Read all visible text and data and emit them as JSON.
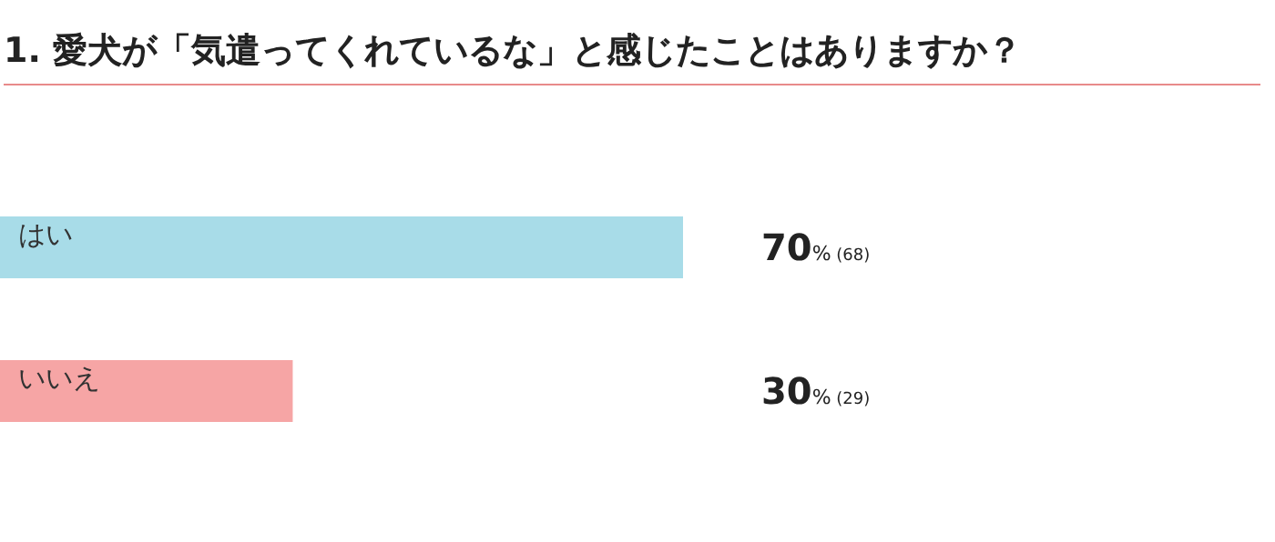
{
  "chart_data": {
    "type": "bar",
    "orientation": "horizontal",
    "title": "1. 愛犬が「気遣ってくれているな」と感じたことはありますか？",
    "categories": [
      "はい",
      "いいえ"
    ],
    "values": [
      70,
      30
    ],
    "colors": [
      "#a8dce8",
      "#f6a5a5"
    ],
    "value_labels": [
      "70% (68)",
      "30% (29)"
    ]
  }
}
